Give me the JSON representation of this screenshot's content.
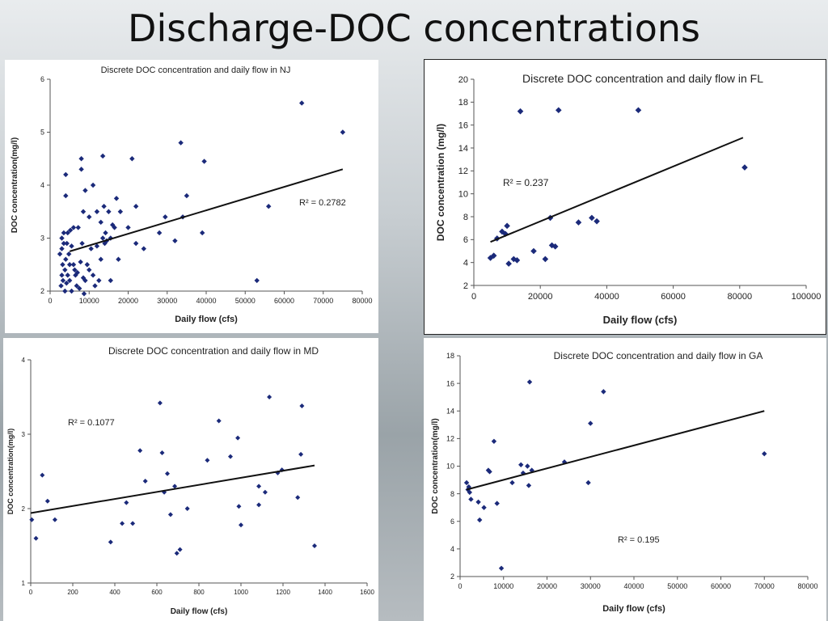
{
  "slide": {
    "title": "Discharge-DOC concentrations"
  },
  "chart_data": [
    {
      "id": "nj",
      "type": "scatter",
      "title": "Discrete DOC concentration and daily flow in NJ",
      "xlabel": "Daily flow (cfs)",
      "ylabel": "DOC concentration(mg/l)",
      "xlim": [
        0,
        80000
      ],
      "ylim": [
        2,
        6
      ],
      "xticks": [
        0,
        10000,
        20000,
        30000,
        40000,
        50000,
        60000,
        70000,
        80000
      ],
      "yticks": [
        2,
        3,
        4,
        5,
        6
      ],
      "annotation": "R² = 0.2782",
      "grid": false,
      "marker_color": "#1b2a7a",
      "trendline": {
        "x": [
          5000,
          75000
        ],
        "y": [
          2.75,
          4.3
        ]
      },
      "points": [
        [
          2500,
          2.7
        ],
        [
          2800,
          2.1
        ],
        [
          3000,
          2.3
        ],
        [
          3000,
          2.8
        ],
        [
          3000,
          3.0
        ],
        [
          3200,
          2.5
        ],
        [
          3300,
          2.2
        ],
        [
          3500,
          2.9
        ],
        [
          3500,
          3.1
        ],
        [
          3800,
          2.0
        ],
        [
          3800,
          2.4
        ],
        [
          4000,
          2.6
        ],
        [
          4000,
          3.8
        ],
        [
          4000,
          4.2
        ],
        [
          4200,
          2.15
        ],
        [
          4300,
          2.9
        ],
        [
          4500,
          2.3
        ],
        [
          4500,
          3.1
        ],
        [
          4800,
          2.7
        ],
        [
          5000,
          2.2
        ],
        [
          5000,
          2.5
        ],
        [
          5200,
          3.15
        ],
        [
          5500,
          2.0
        ],
        [
          5500,
          2.85
        ],
        [
          6000,
          2.5
        ],
        [
          6000,
          3.2
        ],
        [
          6300,
          2.4
        ],
        [
          6500,
          2.3
        ],
        [
          6800,
          2.1
        ],
        [
          7000,
          2.35
        ],
        [
          7200,
          3.2
        ],
        [
          7500,
          2.05
        ],
        [
          7800,
          2.55
        ],
        [
          8000,
          4.3
        ],
        [
          8000,
          4.5
        ],
        [
          8200,
          2.9
        ],
        [
          8500,
          3.5
        ],
        [
          8500,
          2.25
        ],
        [
          8700,
          1.95
        ],
        [
          9000,
          2.2
        ],
        [
          9000,
          3.9
        ],
        [
          9500,
          2.5
        ],
        [
          10000,
          2.4
        ],
        [
          10000,
          3.4
        ],
        [
          10500,
          2.8
        ],
        [
          11000,
          2.3
        ],
        [
          11000,
          4.0
        ],
        [
          11500,
          2.1
        ],
        [
          12000,
          2.85
        ],
        [
          12000,
          3.5
        ],
        [
          12500,
          2.2
        ],
        [
          13000,
          2.6
        ],
        [
          13000,
          3.3
        ],
        [
          13500,
          4.55
        ],
        [
          13500,
          3.0
        ],
        [
          13800,
          3.6
        ],
        [
          14000,
          2.9
        ],
        [
          14200,
          3.1
        ],
        [
          14500,
          2.95
        ],
        [
          15000,
          3.5
        ],
        [
          15500,
          2.2
        ],
        [
          15500,
          3.0
        ],
        [
          16000,
          3.25
        ],
        [
          16500,
          3.2
        ],
        [
          17000,
          3.75
        ],
        [
          17500,
          2.6
        ],
        [
          18000,
          3.5
        ],
        [
          20000,
          3.2
        ],
        [
          21000,
          4.5
        ],
        [
          22000,
          3.6
        ],
        [
          22000,
          2.9
        ],
        [
          24000,
          2.8
        ],
        [
          28000,
          3.1
        ],
        [
          29500,
          3.4
        ],
        [
          32000,
          2.95
        ],
        [
          33500,
          4.8
        ],
        [
          34000,
          3.4
        ],
        [
          35000,
          3.8
        ],
        [
          39000,
          3.1
        ],
        [
          39500,
          4.45
        ],
        [
          53000,
          2.2
        ],
        [
          56000,
          3.6
        ],
        [
          64500,
          5.55
        ],
        [
          75000,
          5.0
        ]
      ]
    },
    {
      "id": "fl",
      "type": "scatter",
      "title": "Discrete DOC concentration  and daily flow in FL",
      "xlabel": "Daily flow (cfs)",
      "ylabel": "DOC concentration (mg/l)",
      "xlim": [
        0,
        100000
      ],
      "ylim": [
        2,
        20
      ],
      "xticks": [
        0,
        20000,
        40000,
        60000,
        80000,
        100000
      ],
      "yticks": [
        2,
        4,
        6,
        8,
        10,
        12,
        14,
        16,
        18,
        20
      ],
      "annotation": "R² = 0.237",
      "grid": false,
      "marker_color": "#1b2a7a",
      "trendline": {
        "x": [
          5000,
          81000
        ],
        "y": [
          5.8,
          14.9
        ]
      },
      "points": [
        [
          5000,
          4.4
        ],
        [
          6000,
          4.6
        ],
        [
          7000,
          6.1
        ],
        [
          8500,
          6.7
        ],
        [
          9500,
          6.5
        ],
        [
          10000,
          7.2
        ],
        [
          10500,
          3.9
        ],
        [
          12000,
          4.3
        ],
        [
          13000,
          4.2
        ],
        [
          14000,
          17.2
        ],
        [
          18000,
          5.0
        ],
        [
          21500,
          4.3
        ],
        [
          23000,
          7.9
        ],
        [
          23500,
          5.5
        ],
        [
          24500,
          5.4
        ],
        [
          25500,
          17.3
        ],
        [
          31500,
          7.5
        ],
        [
          35500,
          7.9
        ],
        [
          37000,
          7.6
        ],
        [
          49500,
          17.3
        ],
        [
          81500,
          12.3
        ]
      ]
    },
    {
      "id": "md",
      "type": "scatter",
      "title": "Discrete DOC concentration and daily flow in MD",
      "xlabel": "Daily flow (cfs)",
      "ylabel": "DOC concentration(mg/l)",
      "xlim": [
        0,
        1600
      ],
      "ylim": [
        1,
        4
      ],
      "xticks": [
        0,
        200,
        400,
        600,
        800,
        1000,
        1200,
        1400,
        1600
      ],
      "yticks": [
        1,
        2,
        3,
        4
      ],
      "annotation": "R² = 0.1077",
      "grid": false,
      "marker_color": "#1b2a7a",
      "trendline": {
        "x": [
          0,
          1350
        ],
        "y": [
          1.94,
          2.58
        ]
      },
      "points": [
        [
          5,
          1.85
        ],
        [
          25,
          1.6
        ],
        [
          55,
          2.45
        ],
        [
          80,
          2.1
        ],
        [
          115,
          1.85
        ],
        [
          380,
          1.55
        ],
        [
          435,
          1.8
        ],
        [
          455,
          2.08
        ],
        [
          485,
          1.8
        ],
        [
          520,
          2.78
        ],
        [
          545,
          2.37
        ],
        [
          615,
          3.42
        ],
        [
          625,
          2.75
        ],
        [
          635,
          2.22
        ],
        [
          650,
          2.47
        ],
        [
          665,
          1.92
        ],
        [
          685,
          2.3
        ],
        [
          695,
          1.4
        ],
        [
          710,
          1.45
        ],
        [
          745,
          2.0
        ],
        [
          840,
          2.65
        ],
        [
          895,
          3.18
        ],
        [
          950,
          2.7
        ],
        [
          985,
          2.95
        ],
        [
          990,
          2.03
        ],
        [
          1000,
          1.78
        ],
        [
          1085,
          2.3
        ],
        [
          1085,
          2.05
        ],
        [
          1115,
          2.22
        ],
        [
          1135,
          3.5
        ],
        [
          1175,
          2.48
        ],
        [
          1195,
          2.52
        ],
        [
          1270,
          2.15
        ],
        [
          1285,
          2.73
        ],
        [
          1290,
          3.38
        ],
        [
          1350,
          1.5
        ]
      ]
    },
    {
      "id": "ga",
      "type": "scatter",
      "title": "Discrete DOC concentration and daily flow in GA",
      "xlabel": "Daily flow (cfs)",
      "ylabel": "DOC concentration(mg/l)",
      "xlim": [
        0,
        80000
      ],
      "ylim": [
        2,
        18
      ],
      "xticks": [
        0,
        10000,
        20000,
        30000,
        40000,
        50000,
        60000,
        70000,
        80000
      ],
      "yticks": [
        2,
        4,
        6,
        8,
        10,
        12,
        14,
        16,
        18
      ],
      "annotation": "R² = 0.195",
      "grid": false,
      "marker_color": "#1b2a7a",
      "trendline": {
        "x": [
          1500,
          70000
        ],
        "y": [
          8.3,
          14.0
        ]
      },
      "points": [
        [
          1500,
          8.8
        ],
        [
          1800,
          8.3
        ],
        [
          2000,
          8.5
        ],
        [
          2200,
          8.1
        ],
        [
          2500,
          7.6
        ],
        [
          4200,
          7.4
        ],
        [
          4500,
          6.1
        ],
        [
          5500,
          7.0
        ],
        [
          6500,
          9.7
        ],
        [
          6800,
          9.6
        ],
        [
          7800,
          11.8
        ],
        [
          8500,
          7.3
        ],
        [
          9500,
          2.6
        ],
        [
          12000,
          8.8
        ],
        [
          14000,
          10.1
        ],
        [
          14500,
          9.5
        ],
        [
          15500,
          10.0
        ],
        [
          15800,
          8.6
        ],
        [
          16000,
          16.1
        ],
        [
          16500,
          9.7
        ],
        [
          24000,
          10.3
        ],
        [
          29500,
          8.8
        ],
        [
          30000,
          13.1
        ],
        [
          33000,
          15.4
        ],
        [
          70000,
          10.9
        ]
      ]
    }
  ]
}
